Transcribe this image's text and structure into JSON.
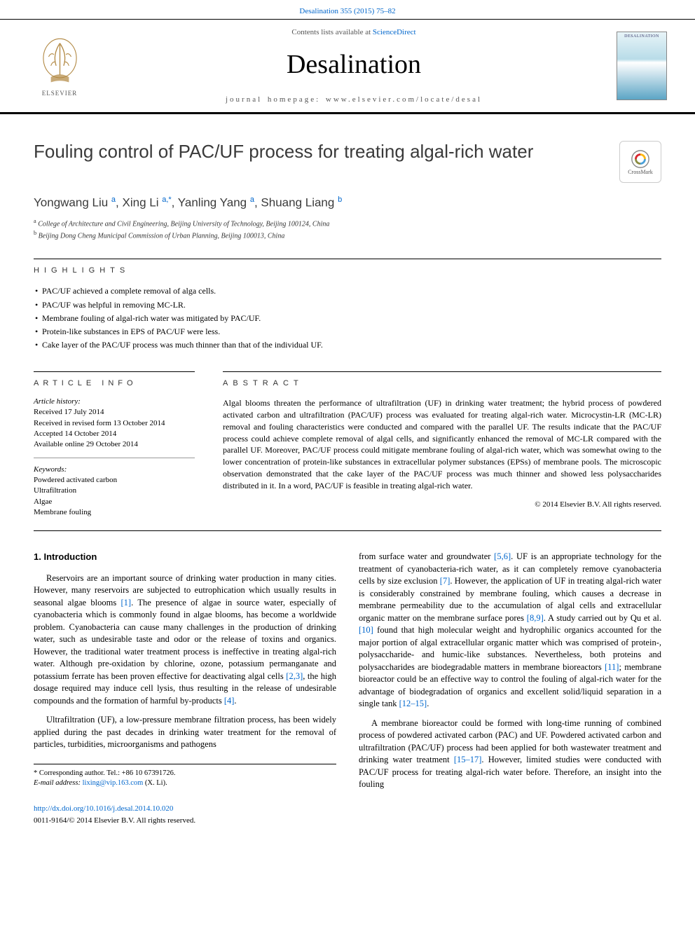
{
  "journal_ref": "Desalination 355 (2015) 75–82",
  "header": {
    "contents_line_prefix": "Contents lists available at ",
    "contents_link": "ScienceDirect",
    "journal_name": "Desalination",
    "homepage_prefix": "journal homepage: ",
    "homepage": "www.elsevier.com/locate/desal",
    "publisher_name": "ELSEVIER",
    "cover_label": "DESALINATION"
  },
  "article": {
    "title": "Fouling control of PAC/UF process for treating algal-rich water",
    "crossmark_label": "CrossMark",
    "authors_html": "Yongwang Liu <sup>a</sup>, Xing Li <sup>a,*</sup>, Yanling Yang <sup>a</sup>, Shuang Liang <sup>b</sup>",
    "affiliations": [
      {
        "sup": "a",
        "text": "College of Architecture and Civil Engineering, Beijing University of Technology, Beijing 100124, China"
      },
      {
        "sup": "b",
        "text": "Beijing Dong Cheng Municipal Commission of Urban Planning, Beijing 100013, China"
      }
    ]
  },
  "highlights": {
    "label": "HIGHLIGHTS",
    "items": [
      "PAC/UF achieved a complete removal of alga cells.",
      "PAC/UF was helpful in removing MC-LR.",
      "Membrane fouling of algal-rich water was mitigated by PAC/UF.",
      "Protein-like substances in EPS of PAC/UF were less.",
      "Cake layer of the PAC/UF process was much thinner than that of the individual UF."
    ]
  },
  "info": {
    "label": "article info",
    "history_label": "Article history:",
    "history": [
      "Received 17 July 2014",
      "Received in revised form 13 October 2014",
      "Accepted 14 October 2014",
      "Available online 29 October 2014"
    ],
    "keywords_label": "Keywords:",
    "keywords": [
      "Powdered activated carbon",
      "Ultrafiltration",
      "Algae",
      "Membrane fouling"
    ]
  },
  "abstract": {
    "label": "abstract",
    "text": "Algal blooms threaten the performance of ultrafiltration (UF) in drinking water treatment; the hybrid process of powdered activated carbon and ultrafiltration (PAC/UF) process was evaluated for treating algal-rich water. Microcystin-LR (MC-LR) removal and fouling characteristics were conducted and compared with the parallel UF. The results indicate that the PAC/UF process could achieve complete removal of algal cells, and significantly enhanced the removal of MC-LR compared with the parallel UF. Moreover, PAC/UF process could mitigate membrane fouling of algal-rich water, which was somewhat owing to the lower concentration of protein-like substances in extracellular polymer substances (EPSs) of membrane pools. The microscopic observation demonstrated that the cake layer of the PAC/UF process was much thinner and showed less polysaccharides distributed in it. In a word, PAC/UF is feasible in treating algal-rich water.",
    "copyright": "© 2014 Elsevier B.V. All rights reserved."
  },
  "body": {
    "section_number": "1.",
    "section_title": "Introduction",
    "p1_a": "Reservoirs are an important source of drinking water production in many cities. However, many reservoirs are subjected to eutrophication which usually results in seasonal algae blooms ",
    "ref1": "[1]",
    "p1_b": ". The presence of algae in source water, especially of cyanobacteria which is commonly found in algae blooms, has become a worldwide problem. Cyanobacteria can cause many challenges in the production of drinking water, such as undesirable taste and odor or the release of toxins and organics. However, the traditional water treatment process is ineffective in treating algal-rich water. Although pre-oxidation by chlorine, ozone, potassium permanganate and potassium ferrate has been proven effective for deactivating algal cells ",
    "ref23": "[2,3]",
    "p1_c": ", the high dosage required may induce cell lysis, thus resulting in the release of undesirable compounds and the formation of harmful by-products ",
    "ref4": "[4]",
    "p1_d": ".",
    "p2_a": "Ultrafiltration (UF), a low-pressure membrane filtration process, has been widely applied during the past decades in drinking water treatment for the removal of particles, turbidities, microorganisms and pathogens",
    "p2_b": "from surface water and groundwater ",
    "ref56": "[5,6]",
    "p2_c": ". UF is an appropriate technology for the treatment of cyanobacteria-rich water, as it can completely remove cyanobacteria cells by size exclusion ",
    "ref7": "[7]",
    "p2_d": ". However, the application of UF in treating algal-rich water is considerably constrained by membrane fouling, which causes a decrease in membrane permeability due to the accumulation of algal cells and extracellular organic matter on the membrane surface pores ",
    "ref89": "[8,9]",
    "p2_e": ". A study carried out by Qu et al. ",
    "ref10": "[10]",
    "p2_f": " found that high molecular weight and hydrophilic organics accounted for the major portion of algal extracellular organic matter which was comprised of protein-, polysaccharide- and humic-like substances. Nevertheless, both proteins and polysaccharides are biodegradable matters in membrane bioreactors ",
    "ref11": "[11]",
    "p2_g": "; membrane bioreactor could be an effective way to control the fouling of algal-rich water for the advantage of biodegradation of organics and excellent solid/liquid separation in a single tank ",
    "ref1215": "[12–15]",
    "p2_h": ".",
    "p3_a": "A membrane bioreactor could be formed with long-time running of combined process of powdered activated carbon (PAC) and UF. Powdered activated carbon and ultrafiltration (PAC/UF) process had been applied for both wastewater treatment and drinking water treatment ",
    "ref1517": "[15–17]",
    "p3_b": ". However, limited studies were conducted with PAC/UF process for treating algal-rich water before. Therefore, an insight into the fouling"
  },
  "footnote": {
    "corr": "* Corresponding author. Tel.: +86 10 67391726.",
    "email_label": "E-mail address: ",
    "email": "lixing@vip.163.com",
    "email_suffix": " (X. Li)."
  },
  "footer": {
    "doi": "http://dx.doi.org/10.1016/j.desal.2014.10.020",
    "issn_line": "0011-9164/© 2014 Elsevier B.V. All rights reserved."
  },
  "colors": {
    "link": "#0066cc",
    "text": "#000000",
    "muted": "#555555",
    "rule": "#000000"
  }
}
